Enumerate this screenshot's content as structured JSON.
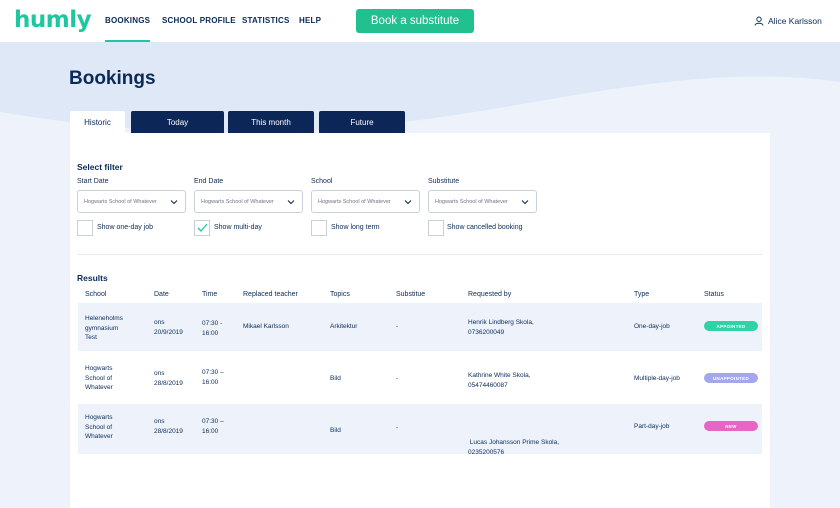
{
  "brand": {
    "logo": "humly"
  },
  "nav": {
    "items": [
      {
        "label": "BOOKINGS"
      },
      {
        "label": "SCHOOL PROFILE"
      },
      {
        "label": "STATISTICS"
      },
      {
        "label": "HELP"
      }
    ],
    "cta_label": "Book a substitute",
    "user_name": "Alice Karlsson"
  },
  "page": {
    "title": "Bookings"
  },
  "tabs": [
    {
      "label": "Historic"
    },
    {
      "label": "Today"
    },
    {
      "label": "This month"
    },
    {
      "label": "Future"
    }
  ],
  "filter": {
    "title": "Select filter",
    "fields": [
      {
        "label": "Start Date",
        "value": "Hogwarts School of Whatever"
      },
      {
        "label": "End Date",
        "value": "Hogwarts School of Whatever"
      },
      {
        "label": "School",
        "value": "Hogwarts School of Whatever"
      },
      {
        "label": "Substitute",
        "value": "Hogwarts School of Whatever"
      }
    ],
    "checkboxes": [
      {
        "label": "Show one-day job",
        "checked": false
      },
      {
        "label": "Show multi-day",
        "checked": true
      },
      {
        "label": "Show long term",
        "checked": false
      },
      {
        "label": "Show cancelled booking",
        "checked": false
      }
    ]
  },
  "results": {
    "title": "Results",
    "columns": [
      "School",
      "Date",
      "Time",
      "Replaced teacher",
      "Topics",
      "Substitue",
      "Requested by",
      "Type",
      "Status"
    ],
    "rows": [
      {
        "school": [
          "Heleneholms",
          "gymnasium",
          "Test"
        ],
        "date": [
          "ons",
          "20/9/2019"
        ],
        "time": [
          "07:30 -",
          "16:00"
        ],
        "replaced_teacher": "Mikael Karlsson",
        "topics": "Arkitektur",
        "substitute": "-",
        "requested_by": [
          "Henrik Lindberg Skola,",
          "0736200049"
        ],
        "type": "One-day-job",
        "status": "APPOINTED",
        "status_color": "#2ed3a5"
      },
      {
        "school": [
          "Hogwarts",
          "School of",
          "Whatever"
        ],
        "date": [
          "ons",
          "28/8/2019"
        ],
        "time": [
          "07:30 –",
          "16:00"
        ],
        "replaced_teacher": "",
        "topics": "Bild",
        "substitute": "-",
        "requested_by": [
          "Kathrine White Skola,",
          "05474460087"
        ],
        "type": "Multiple-day-job",
        "status": "UNAPPOINTED",
        "status_color": "#a4a7ee"
      },
      {
        "school": [
          "Hogwarts",
          "School of",
          "Whatever"
        ],
        "date": [
          "ons",
          "28/8/2019"
        ],
        "time": [
          "07:30 –",
          "16:00"
        ],
        "replaced_teacher": "",
        "topics": "Bild",
        "substitute": "-",
        "requested_by": [
          " Lucas Johansson Prime Skola,",
          "0235200576"
        ],
        "type": "Part-day-job",
        "status": "NEW",
        "status_color": "#e667c3"
      }
    ]
  },
  "colors": {
    "accent": "#1fc7a0",
    "navy": "#0b2657",
    "background": "#e9f0fa"
  },
  "icons": [
    "user-icon",
    "chevron-down-icon",
    "check-icon"
  ]
}
